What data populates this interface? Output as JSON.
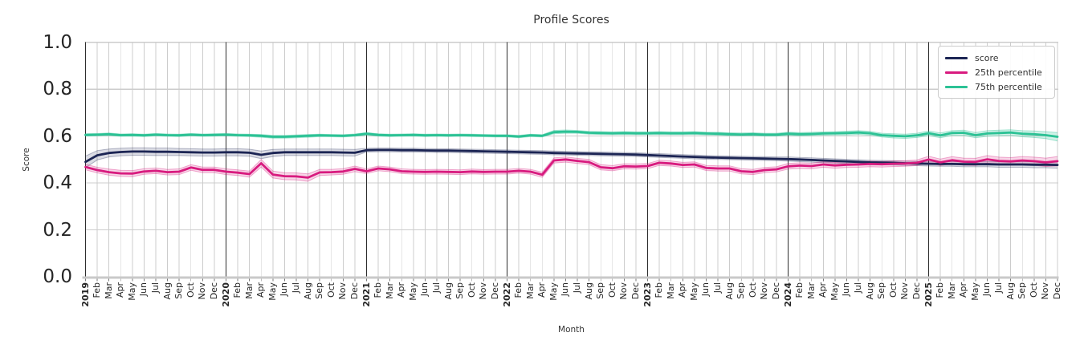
{
  "chart_data": {
    "type": "line",
    "title": "Profile Scores",
    "xlabel": "Month",
    "ylabel": "Score",
    "ylim": [
      0.0,
      1.0
    ],
    "ytick_labels": [
      "0.0",
      "0.2",
      "0.4",
      "0.6",
      "0.8",
      "1.0"
    ],
    "yticks": [
      0.0,
      0.2,
      0.4,
      0.6,
      0.8,
      1.0
    ],
    "grid": true,
    "legend_position": "upper right",
    "x_years": [
      "2019",
      "2020",
      "2021",
      "2022",
      "2023",
      "2024",
      "2025"
    ],
    "x_month_labels": [
      "Feb",
      "Mar",
      "Apr",
      "May",
      "Jun",
      "Jul",
      "Aug",
      "Sep",
      "Oct",
      "Nov",
      "Dec"
    ],
    "series": [
      {
        "name": "score",
        "color": "#1c2554",
        "band_color": "rgba(28,37,84,0.16)",
        "band_edge_color": "rgba(28,37,84,0.30)",
        "values": [
          0.49,
          0.518,
          0.528,
          0.532,
          0.534,
          0.534,
          0.533,
          0.533,
          0.532,
          0.531,
          0.53,
          0.53,
          0.531,
          0.531,
          0.529,
          0.52,
          0.528,
          0.531,
          0.531,
          0.531,
          0.531,
          0.531,
          0.53,
          0.529,
          0.54,
          0.541,
          0.541,
          0.54,
          0.54,
          0.539,
          0.538,
          0.538,
          0.537,
          0.536,
          0.535,
          0.534,
          0.533,
          0.532,
          0.531,
          0.53,
          0.528,
          0.527,
          0.526,
          0.525,
          0.524,
          0.523,
          0.522,
          0.521,
          0.519,
          0.517,
          0.515,
          0.513,
          0.511,
          0.509,
          0.508,
          0.507,
          0.506,
          0.505,
          0.504,
          0.503,
          0.502,
          0.5,
          0.498,
          0.496,
          0.494,
          0.492,
          0.49,
          0.488,
          0.487,
          0.486,
          0.484,
          0.483,
          0.482,
          0.481,
          0.481,
          0.48,
          0.48,
          0.48,
          0.479,
          0.479,
          0.479,
          0.478,
          0.478,
          0.477
        ],
        "band": [
          0.025,
          0.02,
          0.017,
          0.016,
          0.016,
          0.016,
          0.016,
          0.016,
          0.015,
          0.015,
          0.015,
          0.015,
          0.015,
          0.015,
          0.015,
          0.016,
          0.015,
          0.014,
          0.014,
          0.014,
          0.014,
          0.014,
          0.014,
          0.014,
          0.008,
          0.008,
          0.008,
          0.008,
          0.008,
          0.008,
          0.008,
          0.008,
          0.008,
          0.008,
          0.008,
          0.008,
          0.008,
          0.008,
          0.008,
          0.008,
          0.008,
          0.008,
          0.008,
          0.008,
          0.008,
          0.008,
          0.008,
          0.008,
          0.008,
          0.008,
          0.008,
          0.008,
          0.008,
          0.008,
          0.008,
          0.008,
          0.008,
          0.008,
          0.008,
          0.008,
          0.009,
          0.009,
          0.009,
          0.009,
          0.009,
          0.009,
          0.009,
          0.009,
          0.009,
          0.009,
          0.009,
          0.009,
          0.01,
          0.01,
          0.01,
          0.011,
          0.011,
          0.011,
          0.012,
          0.012,
          0.012,
          0.013,
          0.013,
          0.014
        ]
      },
      {
        "name": "25th percentile",
        "color": "#d81b7f",
        "band_color": "rgba(216,27,127,0.18)",
        "band_edge_color": "rgba(216,27,127,0.35)",
        "values": [
          0.468,
          0.455,
          0.446,
          0.441,
          0.44,
          0.449,
          0.452,
          0.446,
          0.448,
          0.466,
          0.456,
          0.456,
          0.448,
          0.444,
          0.438,
          0.484,
          0.436,
          0.429,
          0.428,
          0.423,
          0.445,
          0.446,
          0.449,
          0.46,
          0.45,
          0.462,
          0.458,
          0.45,
          0.448,
          0.447,
          0.448,
          0.447,
          0.446,
          0.449,
          0.447,
          0.448,
          0.448,
          0.452,
          0.448,
          0.435,
          0.496,
          0.5,
          0.494,
          0.489,
          0.467,
          0.463,
          0.471,
          0.47,
          0.472,
          0.486,
          0.483,
          0.477,
          0.479,
          0.464,
          0.462,
          0.462,
          0.45,
          0.447,
          0.455,
          0.458,
          0.471,
          0.474,
          0.472,
          0.479,
          0.475,
          0.478,
          0.479,
          0.481,
          0.48,
          0.482,
          0.483,
          0.486,
          0.5,
          0.488,
          0.497,
          0.491,
          0.49,
          0.501,
          0.494,
          0.492,
          0.496,
          0.493,
          0.488,
          0.493
        ],
        "band": [
          0.012,
          0.012,
          0.013,
          0.013,
          0.013,
          0.012,
          0.012,
          0.012,
          0.012,
          0.012,
          0.012,
          0.012,
          0.012,
          0.012,
          0.013,
          0.016,
          0.015,
          0.015,
          0.015,
          0.016,
          0.013,
          0.012,
          0.012,
          0.012,
          0.01,
          0.01,
          0.01,
          0.01,
          0.01,
          0.01,
          0.01,
          0.01,
          0.01,
          0.01,
          0.01,
          0.01,
          0.01,
          0.01,
          0.01,
          0.011,
          0.011,
          0.011,
          0.011,
          0.011,
          0.011,
          0.011,
          0.011,
          0.011,
          0.011,
          0.011,
          0.011,
          0.011,
          0.011,
          0.011,
          0.011,
          0.011,
          0.011,
          0.011,
          0.011,
          0.011,
          0.012,
          0.012,
          0.012,
          0.012,
          0.012,
          0.012,
          0.012,
          0.012,
          0.012,
          0.012,
          0.012,
          0.012,
          0.014,
          0.014,
          0.015,
          0.015,
          0.015,
          0.016,
          0.016,
          0.016,
          0.017,
          0.017,
          0.018,
          0.02
        ]
      },
      {
        "name": "75th percentile",
        "color": "#2cc295",
        "band_color": "rgba(44,194,149,0.22)",
        "band_edge_color": "rgba(44,194,149,0.40)",
        "values": [
          0.605,
          0.606,
          0.608,
          0.604,
          0.605,
          0.603,
          0.606,
          0.604,
          0.603,
          0.606,
          0.604,
          0.605,
          0.606,
          0.604,
          0.603,
          0.601,
          0.597,
          0.597,
          0.599,
          0.601,
          0.603,
          0.602,
          0.601,
          0.604,
          0.61,
          0.605,
          0.603,
          0.604,
          0.605,
          0.603,
          0.604,
          0.603,
          0.604,
          0.603,
          0.602,
          0.601,
          0.601,
          0.598,
          0.603,
          0.601,
          0.617,
          0.619,
          0.618,
          0.614,
          0.613,
          0.612,
          0.613,
          0.612,
          0.612,
          0.613,
          0.612,
          0.612,
          0.613,
          0.611,
          0.61,
          0.608,
          0.607,
          0.608,
          0.606,
          0.606,
          0.61,
          0.608,
          0.609,
          0.611,
          0.612,
          0.613,
          0.615,
          0.612,
          0.604,
          0.601,
          0.599,
          0.603,
          0.612,
          0.603,
          0.613,
          0.614,
          0.604,
          0.611,
          0.613,
          0.615,
          0.61,
          0.608,
          0.604,
          0.597
        ],
        "band": [
          0.005,
          0.005,
          0.005,
          0.005,
          0.005,
          0.005,
          0.005,
          0.005,
          0.005,
          0.005,
          0.005,
          0.005,
          0.005,
          0.005,
          0.005,
          0.006,
          0.006,
          0.006,
          0.006,
          0.006,
          0.005,
          0.005,
          0.005,
          0.005,
          0.005,
          0.005,
          0.005,
          0.005,
          0.005,
          0.005,
          0.005,
          0.005,
          0.005,
          0.005,
          0.005,
          0.005,
          0.005,
          0.005,
          0.005,
          0.005,
          0.007,
          0.007,
          0.006,
          0.006,
          0.006,
          0.006,
          0.006,
          0.006,
          0.006,
          0.006,
          0.006,
          0.006,
          0.006,
          0.006,
          0.006,
          0.006,
          0.006,
          0.006,
          0.006,
          0.006,
          0.007,
          0.007,
          0.007,
          0.007,
          0.007,
          0.008,
          0.008,
          0.008,
          0.008,
          0.009,
          0.009,
          0.009,
          0.01,
          0.01,
          0.01,
          0.011,
          0.011,
          0.012,
          0.012,
          0.012,
          0.013,
          0.014,
          0.015,
          0.018
        ]
      }
    ],
    "style": {
      "grid_color": "#cccccc",
      "year_line_color": "#2e2e2e",
      "left_spine_color": "#2e2e2e",
      "bottom_spine_color": "#c9c9c9",
      "tick_color": "#777777"
    }
  }
}
